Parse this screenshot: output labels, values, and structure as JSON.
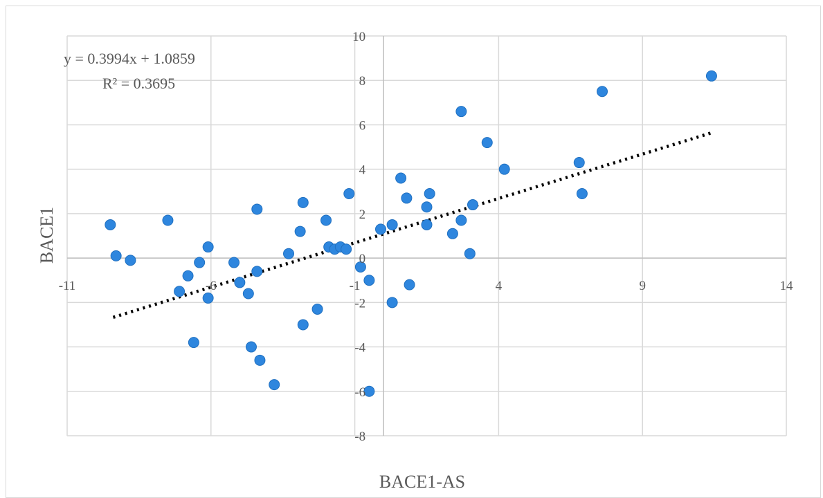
{
  "chart_data": {
    "type": "scatter",
    "xlabel": "BACE1-AS",
    "ylabel": "BACE1",
    "xlim": [
      -11,
      14
    ],
    "ylim": [
      -8,
      10
    ],
    "x_ticks": [
      -11,
      -6,
      -1,
      4,
      9,
      14
    ],
    "y_ticks": [
      -8,
      -6,
      -4,
      -2,
      0,
      2,
      4,
      6,
      8,
      10
    ],
    "x_tick_labels": [
      "-11",
      "-6",
      "-1",
      "4",
      "9",
      "14"
    ],
    "y_tick_labels": [
      "-8",
      "-6",
      "-4",
      "-2",
      "0",
      "2",
      "4",
      "6",
      "8",
      "10"
    ],
    "grid": true,
    "point_color": "#2e86de",
    "trendline_color": "#000000",
    "trendline": {
      "slope": 0.3994,
      "intercept": 1.0859,
      "x_range": [
        -9.4,
        11.4
      ]
    },
    "equation_text": "y = 0.3994x + 1.0859",
    "r2_text": "R² = 0.3695",
    "points": [
      {
        "x": -9.5,
        "y": 1.5
      },
      {
        "x": -9.3,
        "y": 0.1
      },
      {
        "x": -8.8,
        "y": -0.1
      },
      {
        "x": -7.5,
        "y": 1.7
      },
      {
        "x": -7.1,
        "y": -1.5
      },
      {
        "x": -6.8,
        "y": -0.8
      },
      {
        "x": -6.6,
        "y": -3.8
      },
      {
        "x": -6.4,
        "y": -0.2
      },
      {
        "x": -6.1,
        "y": 0.5
      },
      {
        "x": -6.1,
        "y": -1.8
      },
      {
        "x": -5.2,
        "y": -0.2
      },
      {
        "x": -5.0,
        "y": -1.1
      },
      {
        "x": -4.7,
        "y": -1.6
      },
      {
        "x": -4.6,
        "y": -4.0
      },
      {
        "x": -4.4,
        "y": 2.2
      },
      {
        "x": -4.4,
        "y": -0.6
      },
      {
        "x": -4.3,
        "y": -4.6
      },
      {
        "x": -3.8,
        "y": -5.7
      },
      {
        "x": -3.3,
        "y": 0.2
      },
      {
        "x": -2.9,
        "y": 1.2
      },
      {
        "x": -2.8,
        "y": 2.5
      },
      {
        "x": -2.8,
        "y": -3.0
      },
      {
        "x": -2.3,
        "y": -2.3
      },
      {
        "x": -2.0,
        "y": 1.7
      },
      {
        "x": -1.9,
        "y": 0.5
      },
      {
        "x": -1.7,
        "y": 0.4
      },
      {
        "x": -1.5,
        "y": 0.5
      },
      {
        "x": -1.3,
        "y": 0.4
      },
      {
        "x": -1.2,
        "y": 2.9
      },
      {
        "x": -0.8,
        "y": -0.4
      },
      {
        "x": -0.5,
        "y": -1.0
      },
      {
        "x": -0.5,
        "y": -6.0
      },
      {
        "x": -0.1,
        "y": 1.3
      },
      {
        "x": 0.3,
        "y": 1.5
      },
      {
        "x": 0.3,
        "y": -2.0
      },
      {
        "x": 0.6,
        "y": 3.6
      },
      {
        "x": 0.8,
        "y": 2.7
      },
      {
        "x": 0.9,
        "y": -1.2
      },
      {
        "x": 1.5,
        "y": 2.3
      },
      {
        "x": 1.5,
        "y": 1.5
      },
      {
        "x": 1.6,
        "y": 2.9
      },
      {
        "x": 2.4,
        "y": 1.1
      },
      {
        "x": 2.7,
        "y": 1.7
      },
      {
        "x": 2.7,
        "y": 6.6
      },
      {
        "x": 3.0,
        "y": 0.2
      },
      {
        "x": 3.1,
        "y": 2.4
      },
      {
        "x": 3.6,
        "y": 5.2
      },
      {
        "x": 4.2,
        "y": 4.0
      },
      {
        "x": 6.8,
        "y": 4.3
      },
      {
        "x": 6.9,
        "y": 2.9
      },
      {
        "x": 7.6,
        "y": 7.5
      },
      {
        "x": 11.4,
        "y": 8.2
      }
    ]
  }
}
